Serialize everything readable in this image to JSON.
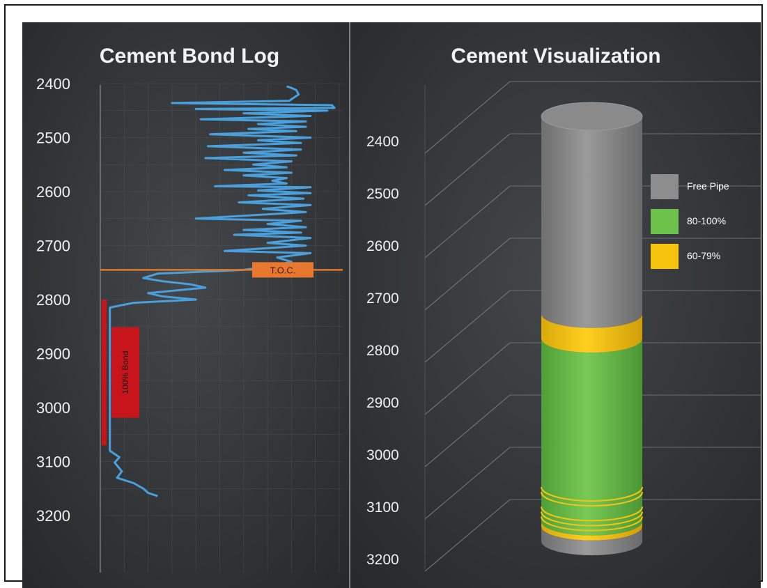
{
  "colors": {
    "background": "#2f3133",
    "grid": "#5a5d61",
    "curve": "#4aa0dc",
    "toc_line": "#e07a2e",
    "toc_label_bg": "#e8772f",
    "bond_bar": "#c8151b",
    "free_pipe": "#8d8d8d",
    "bond_80_100": "#6cc24a",
    "bond_60_79": "#f6c40f",
    "text": "#ffffff",
    "axis_text": "#f0f0f0"
  },
  "chart_data": [
    {
      "type": "line",
      "title": "Cement Bond Log",
      "xlabel": "",
      "ylabel": "",
      "y_axis": "depth",
      "y_inverted": true,
      "ylim": [
        2400,
        3200
      ],
      "yticks": [
        "2400",
        "2500",
        "2600",
        "2700",
        "2800",
        "2900",
        "3000",
        "3100",
        "3200"
      ],
      "xlim": [
        0,
        100
      ],
      "grid": true,
      "annotations": {
        "toc": {
          "label": "T.O.C.",
          "depth": 2745
        },
        "bond_zone": {
          "label": "100% Bond",
          "from": 2800,
          "to": 3070
        }
      },
      "series": [
        {
          "points": [
            [
              78,
              2405
            ],
            [
              80,
              2408
            ],
            [
              82,
              2412
            ],
            [
              83,
              2420
            ],
            [
              79,
              2432
            ],
            [
              30,
              2436
            ],
            [
              97,
              2440
            ],
            [
              98,
              2445
            ],
            [
              40,
              2447
            ],
            [
              95,
              2450
            ],
            [
              60,
              2455
            ],
            [
              88,
              2460
            ],
            [
              42,
              2466
            ],
            [
              86,
              2470
            ],
            [
              66,
              2475
            ],
            [
              86,
              2480
            ],
            [
              62,
              2484
            ],
            [
              82,
              2488
            ],
            [
              46,
              2494
            ],
            [
              88,
              2500
            ],
            [
              66,
              2505
            ],
            [
              84,
              2510
            ],
            [
              45,
              2516
            ],
            [
              84,
              2522
            ],
            [
              60,
              2528
            ],
            [
              82,
              2533
            ],
            [
              44,
              2538
            ],
            [
              80,
              2544
            ],
            [
              64,
              2550
            ],
            [
              78,
              2555
            ],
            [
              52,
              2560
            ],
            [
              80,
              2565
            ],
            [
              60,
              2570
            ],
            [
              78,
              2575
            ],
            [
              72,
              2580
            ],
            [
              78,
              2585
            ],
            [
              48,
              2590
            ],
            [
              88,
              2592
            ],
            [
              66,
              2598
            ],
            [
              88,
              2603
            ],
            [
              62,
              2607
            ],
            [
              85,
              2613
            ],
            [
              58,
              2620
            ],
            [
              88,
              2625
            ],
            [
              68,
              2632
            ],
            [
              86,
              2638
            ],
            [
              40,
              2650
            ],
            [
              84,
              2654
            ],
            [
              70,
              2660
            ],
            [
              86,
              2666
            ],
            [
              60,
              2671
            ],
            [
              84,
              2676
            ],
            [
              56,
              2680
            ],
            [
              88,
              2686
            ],
            [
              70,
              2695
            ],
            [
              86,
              2700
            ],
            [
              52,
              2710
            ],
            [
              88,
              2714
            ],
            [
              74,
              2722
            ],
            [
              80,
              2730
            ],
            [
              72,
              2738
            ],
            [
              60,
              2745
            ],
            [
              24,
              2752
            ],
            [
              18,
              2760
            ],
            [
              26,
              2766
            ],
            [
              38,
              2772
            ],
            [
              44,
              2778
            ],
            [
              32,
              2783
            ],
            [
              20,
              2788
            ],
            [
              26,
              2794
            ],
            [
              40,
              2800
            ],
            [
              14,
              2806
            ],
            [
              7,
              2812
            ],
            [
              4,
              2815
            ],
            [
              4,
              3080
            ],
            [
              8,
              3092
            ],
            [
              6,
              3102
            ],
            [
              9,
              3118
            ],
            [
              7,
              3130
            ],
            [
              14,
              3140
            ],
            [
              18,
              3150
            ],
            [
              20,
              3158
            ],
            [
              24,
              3164
            ]
          ]
        }
      ]
    },
    {
      "type": "bar",
      "title": "Cement Visualization",
      "xlabel": "",
      "ylabel": "",
      "y_axis": "depth",
      "y_inverted": true,
      "ylim": [
        2300,
        3200
      ],
      "yticks": [
        "2400",
        "2500",
        "2600",
        "2700",
        "2800",
        "2900",
        "3000",
        "3100",
        "3200"
      ],
      "grid": true,
      "legend_position": "right",
      "legend": [
        {
          "name": "Free Pipe",
          "color": "#8d8d8d"
        },
        {
          "name": "80-100%",
          "color": "#6cc24a"
        },
        {
          "name": "60-79%",
          "color": "#f6c40f"
        }
      ],
      "segments": [
        {
          "series": "Free Pipe",
          "from": 2300,
          "to": 2700
        },
        {
          "series": "60-79%",
          "from": 2700,
          "to": 2750
        },
        {
          "series": "80-100%",
          "from": 2750,
          "to": 3120
        },
        {
          "series": "60-79%",
          "from": 3120,
          "to": 3130
        },
        {
          "series": "Free Pipe",
          "from": 3130,
          "to": 3160
        }
      ],
      "thin_bands": [
        {
          "series": "60-79%",
          "depth": 3050
        },
        {
          "series": "60-79%",
          "depth": 3060
        },
        {
          "series": "60-79%",
          "depth": 3090
        },
        {
          "series": "60-79%",
          "depth": 3100
        },
        {
          "series": "60-79%",
          "depth": 3110
        }
      ]
    }
  ]
}
